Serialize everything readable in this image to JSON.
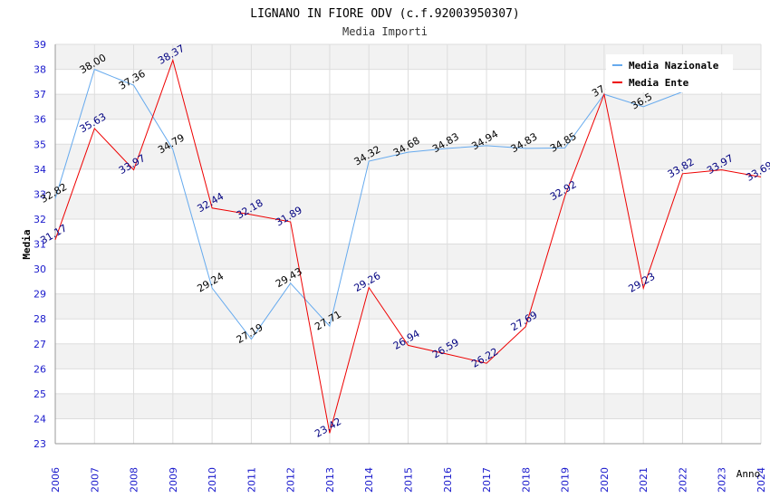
{
  "chart_data": {
    "type": "line",
    "title": "LIGNANO IN FIORE ODV (c.f.92003950307)",
    "subtitle": "Media Importi",
    "xlabel": "Anno",
    "ylabel": "Media",
    "ylim": [
      23,
      39
    ],
    "yticks": [
      "23",
      "24",
      "25",
      "26",
      "27",
      "28",
      "29",
      "30",
      "31",
      "32",
      "33",
      "34",
      "35",
      "36",
      "37",
      "38",
      "39"
    ],
    "categories": [
      "2006",
      "2007",
      "2008",
      "2009",
      "2010",
      "2011",
      "2012",
      "2013",
      "2014",
      "2015",
      "2016",
      "2017",
      "2018",
      "2019",
      "2020",
      "2021",
      "2022",
      "2023",
      "2024"
    ],
    "grid": true,
    "legend_position": "top-right",
    "series": [
      {
        "name": "Media Nazionale",
        "color": "#66aaee",
        "label_color": "#000000",
        "values": [
          32.82,
          38.0,
          37.36,
          34.79,
          29.24,
          27.19,
          29.43,
          27.71,
          34.32,
          34.68,
          34.83,
          34.94,
          34.83,
          34.85,
          37.0,
          36.5,
          37.1,
          null,
          null
        ],
        "labels": [
          "32.82",
          "38.00",
          "37.36",
          "34.79",
          "29.24",
          "27.19",
          "29.43",
          "27.71",
          "34.32",
          "34.68",
          "34.83",
          "34.94",
          "34.83",
          "34.85",
          "37.0",
          "36.5",
          "",
          "",
          ""
        ]
      },
      {
        "name": "Media Ente",
        "color": "#ee0000",
        "label_color": "#000080",
        "values": [
          31.17,
          35.63,
          33.97,
          38.37,
          32.44,
          32.18,
          31.89,
          23.42,
          29.26,
          26.94,
          26.59,
          26.22,
          27.69,
          32.92,
          37.0,
          29.23,
          33.82,
          33.97,
          33.69
        ],
        "labels": [
          "31.17",
          "35.63",
          "33.97",
          "38.37",
          "32.44",
          "32.18",
          "31.89",
          "23.42",
          "29.26",
          "26.94",
          "26.59",
          "26.22",
          "27.69",
          "32.92",
          "",
          "29.23",
          "33.82",
          "33.97",
          "33.69"
        ]
      }
    ]
  }
}
